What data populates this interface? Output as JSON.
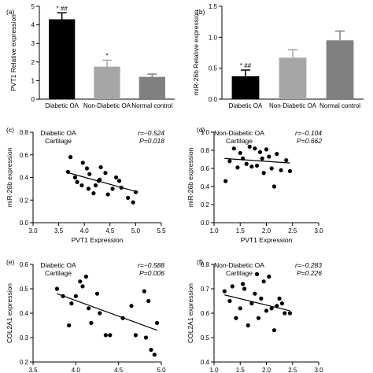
{
  "chart_data": [
    {
      "panel": "(a)",
      "type": "bar",
      "categories": [
        "Diabetic OA",
        "Non-Diabetic OA",
        "Normal control"
      ],
      "values": [
        4.3,
        1.75,
        1.2
      ],
      "errors": [
        0.35,
        0.35,
        0.15
      ],
      "colors": [
        "#000000",
        "#a6a6a6",
        "#808080"
      ],
      "annotations": [
        "* ##",
        "*",
        ""
      ],
      "ylabel": "PVT1 Relative expression",
      "ylim": [
        0,
        5
      ],
      "yticks": [
        0,
        1,
        2,
        3,
        4,
        5
      ]
    },
    {
      "panel": "(b)",
      "type": "bar",
      "categories": [
        "Diabetic OA",
        "Non-Diabetic OA",
        "Normal control"
      ],
      "values": [
        0.37,
        0.67,
        0.95
      ],
      "errors": [
        0.1,
        0.13,
        0.15
      ],
      "colors": [
        "#000000",
        "#a6a6a6",
        "#808080"
      ],
      "annotations": [
        "* ##",
        "",
        ""
      ],
      "ylabel": "miR-26b Relative expression",
      "ylim": [
        0,
        1.5
      ],
      "yticks": [
        0.0,
        0.5,
        1.0,
        1.5
      ]
    },
    {
      "panel": "(c)",
      "type": "scatter",
      "group_label": "Diabetic OA",
      "group_sub": "Cartilage",
      "r_text": "r=−0.524",
      "p_text": "P=0.018",
      "xlabel": "PVT1 Expression",
      "ylabel": "miR-26b expression",
      "xlim": [
        3.0,
        5.5
      ],
      "ylim": [
        0.0,
        0.8
      ],
      "xticks": [
        3.0,
        3.5,
        4.0,
        4.5,
        5.0,
        5.5
      ],
      "yticks": [
        0.0,
        0.2,
        0.4,
        0.6,
        0.8
      ],
      "points": [
        [
          3.73,
          0.58
        ],
        [
          3.68,
          0.45
        ],
        [
          3.82,
          0.4
        ],
        [
          3.86,
          0.36
        ],
        [
          3.95,
          0.33
        ],
        [
          3.97,
          0.53
        ],
        [
          4.05,
          0.48
        ],
        [
          4.1,
          0.43
        ],
        [
          4.08,
          0.3
        ],
        [
          4.18,
          0.26
        ],
        [
          4.22,
          0.33
        ],
        [
          4.28,
          0.37
        ],
        [
          4.32,
          0.49
        ],
        [
          4.41,
          0.44
        ],
        [
          4.46,
          0.25
        ],
        [
          4.55,
          0.3
        ],
        [
          4.62,
          0.4
        ],
        [
          4.68,
          0.37
        ],
        [
          4.72,
          0.31
        ],
        [
          4.85,
          0.22
        ],
        [
          4.95,
          0.18
        ],
        [
          5.0,
          0.27
        ],
        [
          4.3,
          0.38
        ]
      ],
      "fit": [
        [
          3.7,
          0.44
        ],
        [
          5.05,
          0.27
        ]
      ]
    },
    {
      "panel": "(d)",
      "type": "scatter",
      "group_label": "Non-Diabetic OA",
      "group_sub": "Cartilage",
      "r_text": "r=−0.104",
      "p_text": "P=0.662",
      "xlabel": "PVT1 Expression",
      "ylabel": "miR-26b expression",
      "xlim": [
        1.0,
        3.0
      ],
      "ylim": [
        0.0,
        1.0
      ],
      "xticks": [
        1.0,
        1.5,
        2.0,
        2.5,
        3.0
      ],
      "yticks": [
        0.0,
        0.2,
        0.4,
        0.6,
        0.8,
        1.0
      ],
      "points": [
        [
          1.22,
          0.46
        ],
        [
          1.3,
          0.68
        ],
        [
          1.38,
          0.82
        ],
        [
          1.45,
          0.61
        ],
        [
          1.5,
          0.77
        ],
        [
          1.55,
          0.71
        ],
        [
          1.62,
          0.65
        ],
        [
          1.68,
          0.84
        ],
        [
          1.72,
          0.62
        ],
        [
          1.78,
          0.82
        ],
        [
          1.82,
          0.63
        ],
        [
          1.88,
          0.78
        ],
        [
          1.92,
          0.71
        ],
        [
          1.95,
          0.55
        ],
        [
          2.0,
          0.81
        ],
        [
          2.05,
          0.73
        ],
        [
          2.1,
          0.6
        ],
        [
          2.15,
          0.4
        ],
        [
          2.2,
          0.76
        ],
        [
          2.28,
          0.58
        ],
        [
          2.38,
          0.69
        ],
        [
          2.45,
          0.57
        ]
      ],
      "fit": [
        [
          1.2,
          0.71
        ],
        [
          2.45,
          0.66
        ]
      ]
    },
    {
      "panel": "(e)",
      "type": "scatter",
      "group_label": "Diabetic OA",
      "group_sub": "Cartilage",
      "r_text": "r=−0.588",
      "p_text": "P=0.006",
      "xlabel": "PVT1 Expression",
      "ylabel": "COL2A1 expression",
      "xlim": [
        3.5,
        5.0
      ],
      "ylim": [
        0.2,
        0.6
      ],
      "xticks": [
        3.5,
        4.0,
        4.5,
        5.0
      ],
      "yticks": [
        0.2,
        0.3,
        0.4,
        0.5,
        0.6
      ],
      "points": [
        [
          3.78,
          0.5
        ],
        [
          3.85,
          0.47
        ],
        [
          3.92,
          0.35
        ],
        [
          3.95,
          0.44
        ],
        [
          4.0,
          0.47
        ],
        [
          4.05,
          0.53
        ],
        [
          4.08,
          0.51
        ],
        [
          4.12,
          0.55
        ],
        [
          4.15,
          0.42
        ],
        [
          4.18,
          0.36
        ],
        [
          4.25,
          0.48
        ],
        [
          4.28,
          0.4
        ],
        [
          4.35,
          0.31
        ],
        [
          4.4,
          0.31
        ],
        [
          4.55,
          0.38
        ],
        [
          4.65,
          0.43
        ],
        [
          4.7,
          0.31
        ],
        [
          4.8,
          0.49
        ],
        [
          4.82,
          0.3
        ],
        [
          4.85,
          0.45
        ],
        [
          4.88,
          0.25
        ],
        [
          4.92,
          0.23
        ],
        [
          4.95,
          0.36
        ]
      ],
      "fit": [
        [
          3.78,
          0.48
        ],
        [
          4.95,
          0.33
        ]
      ]
    },
    {
      "panel": "(f)",
      "type": "scatter",
      "group_label": "Non-Diabetic OA",
      "group_sub": "Cartilage",
      "r_text": "r=−0.283",
      "p_text": "P=0.226",
      "xlabel": "PVT1 Expression",
      "ylabel": "COL2A1 expression",
      "xlim": [
        1.0,
        3.0
      ],
      "ylim": [
        0.4,
        0.8
      ],
      "xticks": [
        1.0,
        1.5,
        2.0,
        2.5,
        3.0
      ],
      "yticks": [
        0.4,
        0.5,
        0.6,
        0.7,
        0.8
      ],
      "points": [
        [
          1.2,
          0.69
        ],
        [
          1.3,
          0.65
        ],
        [
          1.35,
          0.71
        ],
        [
          1.42,
          0.58
        ],
        [
          1.5,
          0.62
        ],
        [
          1.55,
          0.72
        ],
        [
          1.58,
          0.7
        ],
        [
          1.65,
          0.55
        ],
        [
          1.72,
          0.64
        ],
        [
          1.78,
          0.68
        ],
        [
          1.82,
          0.76
        ],
        [
          1.85,
          0.58
        ],
        [
          1.9,
          0.66
        ],
        [
          1.95,
          0.73
        ],
        [
          2.0,
          0.61
        ],
        [
          2.05,
          0.75
        ],
        [
          2.1,
          0.62
        ],
        [
          2.15,
          0.53
        ],
        [
          2.2,
          0.63
        ],
        [
          2.25,
          0.66
        ],
        [
          2.3,
          0.64
        ],
        [
          2.35,
          0.6
        ],
        [
          2.45,
          0.6
        ]
      ],
      "fit": [
        [
          1.2,
          0.675
        ],
        [
          2.45,
          0.61
        ]
      ]
    }
  ]
}
